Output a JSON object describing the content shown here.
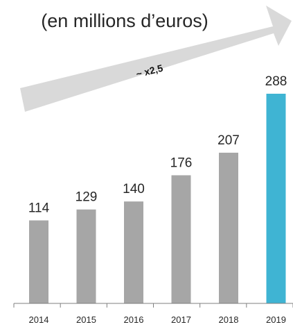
{
  "chart_data": {
    "type": "bar",
    "title": "(en millions d’euros)",
    "annotation": "~ x2,5",
    "categories": [
      "2014",
      "2015",
      "2016",
      "2017",
      "2018",
      "2019"
    ],
    "values": [
      114,
      129,
      140,
      176,
      207,
      288
    ],
    "highlight_index": 5,
    "colors": {
      "bar": "#a6a6a6",
      "highlight": "#3fb4d3",
      "arrow": "#d9d9d9",
      "axis": "#7f7f7f",
      "text": "#262626"
    },
    "xlabel": "",
    "ylabel": "",
    "ylim": [
      0,
      288
    ],
    "grid": false,
    "legend": "none"
  }
}
